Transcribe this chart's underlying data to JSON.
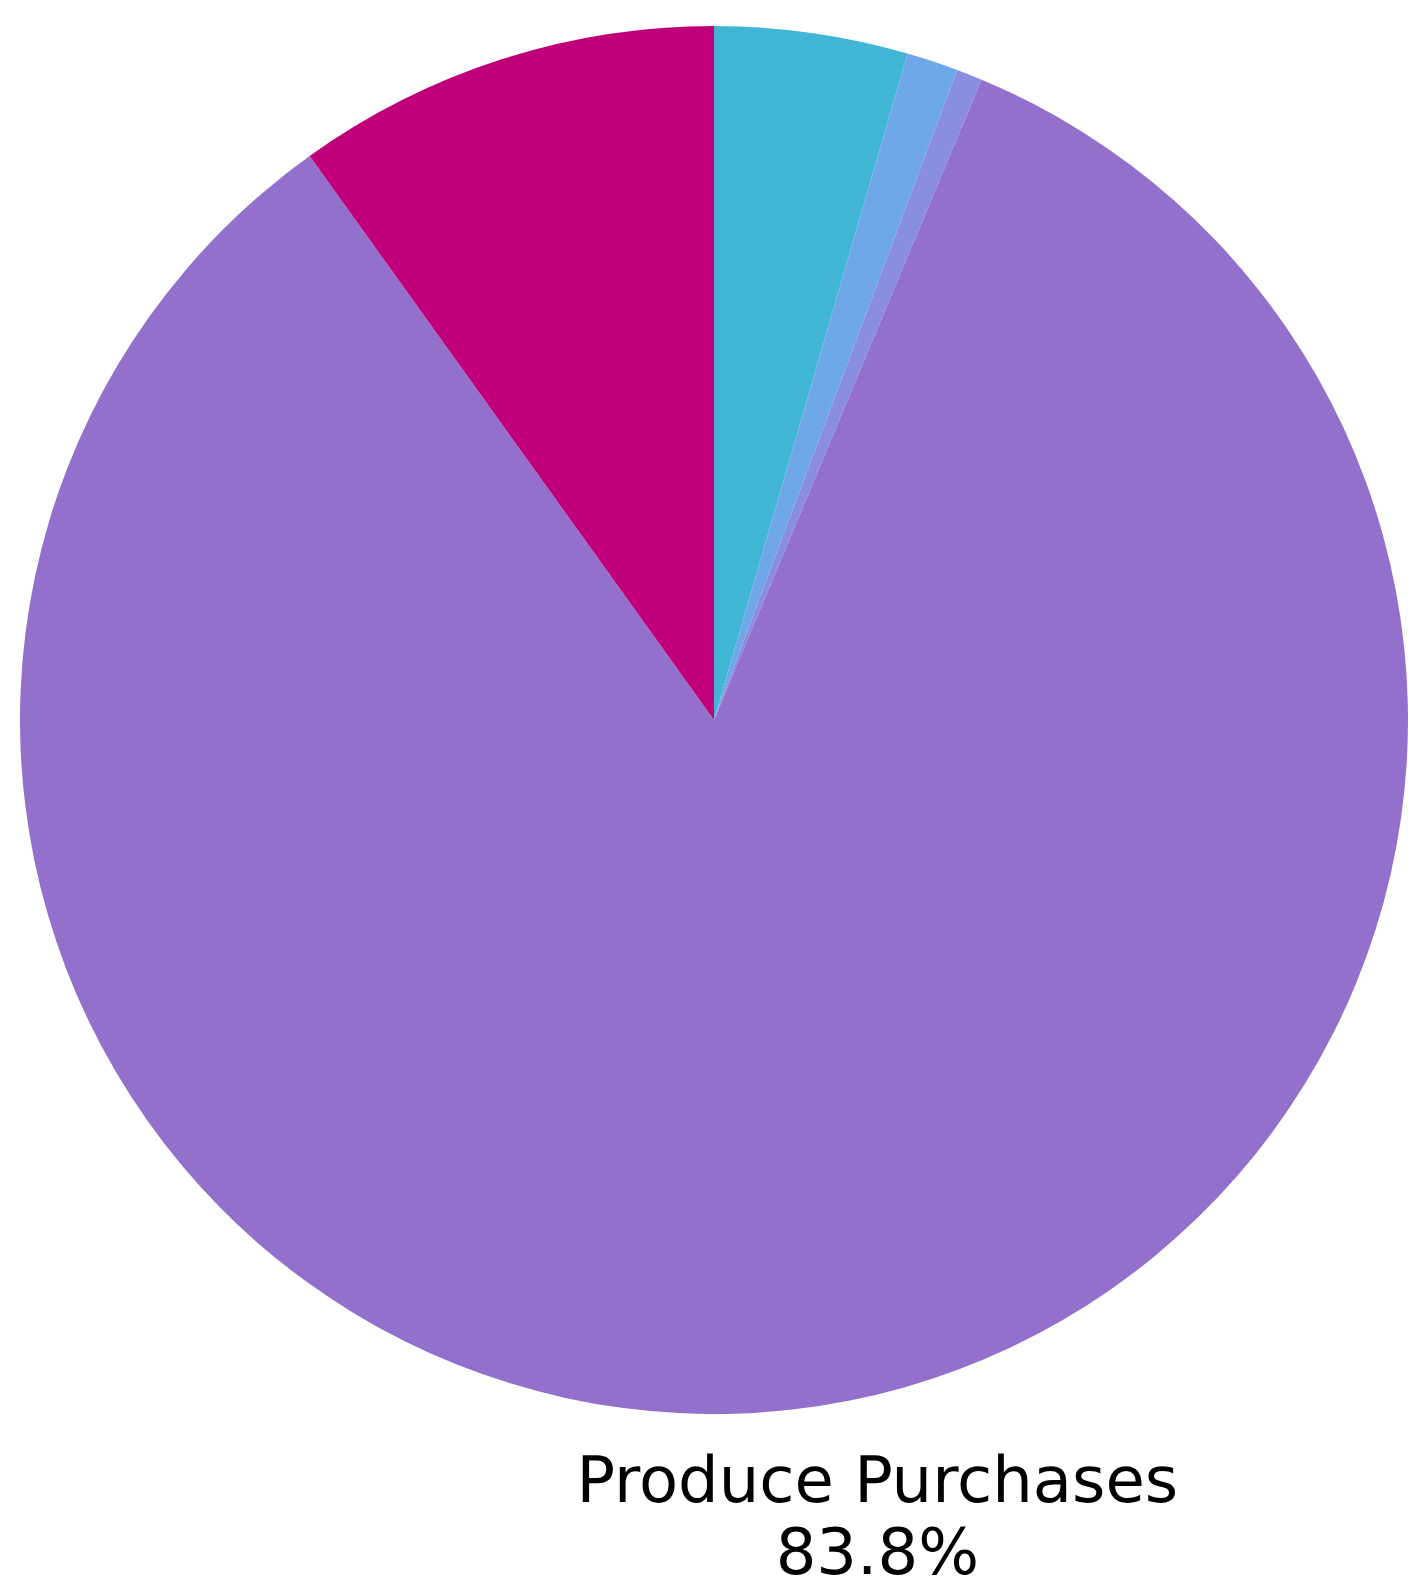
{
  "chart_data": {
    "type": "pie",
    "categories": [
      null,
      null,
      null,
      "Produce Purchases",
      null
    ],
    "values": [
      4.5,
      1.2,
      0.6,
      83.8,
      9.9
    ],
    "colors": [
      "#42b6d6",
      "#6fa8e8",
      "#8a8ee0",
      "#9370cc",
      "#c0007a"
    ],
    "value_labels": [
      null,
      null,
      null,
      "83.8%",
      null
    ],
    "legend": false
  }
}
